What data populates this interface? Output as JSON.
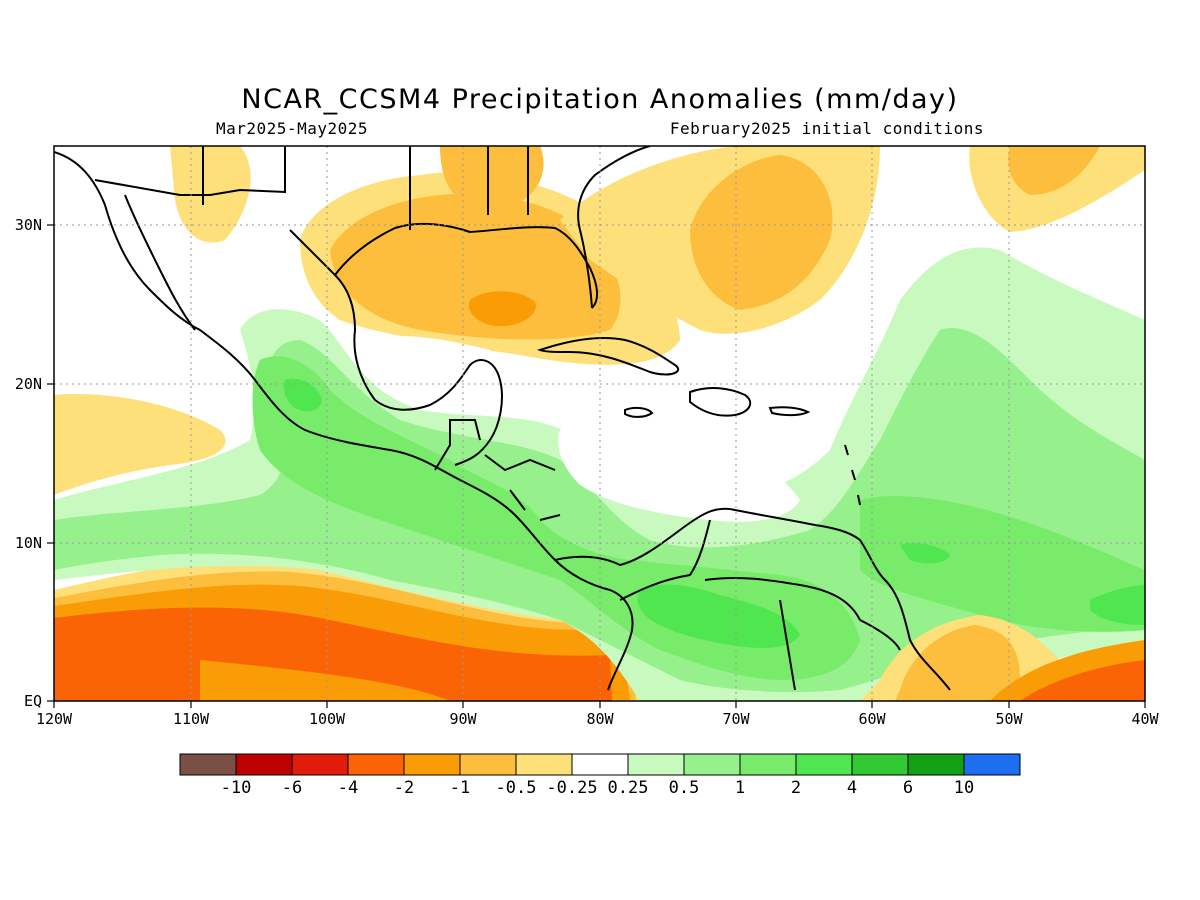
{
  "title": "NCAR_CCSM4 Precipitation Anomalies (mm/day)",
  "subtitle_left": "Mar2025-May2025",
  "subtitle_right": "February2025 initial conditions",
  "axes": {
    "lon_ticks": [
      "120W",
      "110W",
      "100W",
      "90W",
      "80W",
      "70W",
      "60W",
      "50W",
      "40W"
    ],
    "lat_ticks": [
      "EQ",
      "10N",
      "20N",
      "30N"
    ],
    "lon_range": [
      -120,
      -40
    ],
    "lat_range": [
      0,
      35
    ],
    "grid": true
  },
  "colorbar": {
    "labels": [
      "-10",
      "-6",
      "-4",
      "-2",
      "-1",
      "-0.5",
      "-0.25",
      "0.25",
      "0.5",
      "1",
      "2",
      "4",
      "6",
      "10"
    ],
    "colors": [
      "#7a5044",
      "#c00000",
      "#e01c0a",
      "#fa6405",
      "#fa9c05",
      "#fcbe3c",
      "#fde07a",
      "#ffffff",
      "#c8fac0",
      "#96f08c",
      "#78eb6a",
      "#50e650",
      "#32c832",
      "#14a014",
      "#1e6ef0"
    ]
  }
}
